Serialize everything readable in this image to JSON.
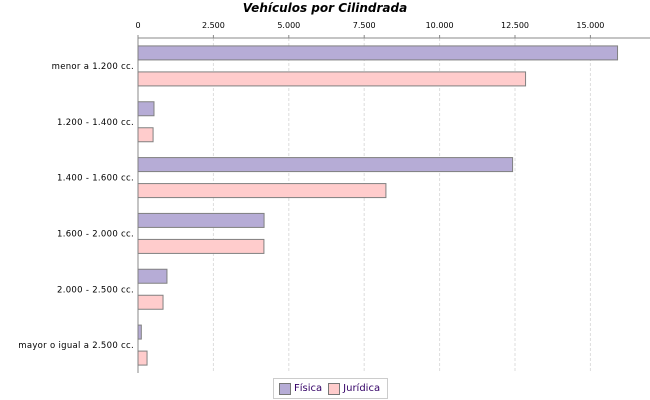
{
  "chart_data": {
    "type": "bar",
    "orientation": "horizontal",
    "title": "Vehículos por Cilindrada",
    "xlabel": "",
    "ylabel": "",
    "categories": [
      "menor a 1.200 cc.",
      "1.200 - 1.400 cc.",
      "1.400 - 1.600 cc.",
      "1.600 - 2.000 cc.",
      "2.000 - 2.500 cc.",
      "mayor o igual a 2.500 cc."
    ],
    "series": [
      {
        "name": "Física",
        "color": "#b6acd6",
        "values": [
          15900,
          530,
          12420,
          4180,
          960,
          110
        ]
      },
      {
        "name": "Jurídica",
        "color": "#ffcccc",
        "values": [
          12850,
          500,
          8220,
          4175,
          830,
          300
        ]
      }
    ],
    "xlim": [
      0,
      16600
    ],
    "ticks": [
      0,
      2500,
      5000,
      7500,
      10000,
      12500,
      15000
    ],
    "tick_labels": [
      "0",
      "2.500",
      "5.000",
      "7.500",
      "10.000",
      "12.500",
      "15.000"
    ],
    "axis_position": "top",
    "grid": true,
    "legend": "bottom"
  }
}
